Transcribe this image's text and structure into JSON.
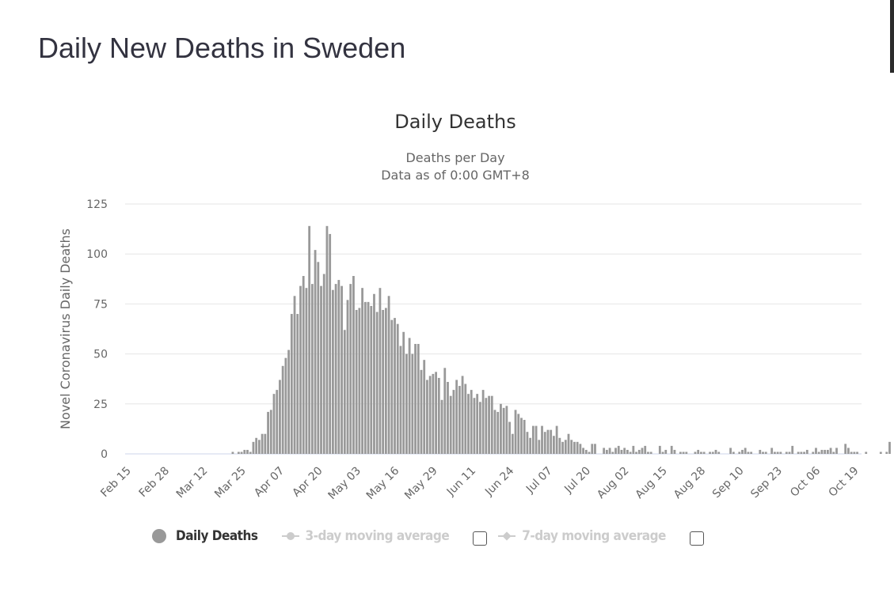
{
  "page": {
    "title": "Daily New Deaths in Sweden"
  },
  "chart_data": {
    "type": "bar",
    "title": "Daily Deaths",
    "subtitle": [
      "Deaths per Day",
      "Data as of 0:00 GMT+8"
    ],
    "xlabel": "",
    "ylabel": "Novel Coronavirus Daily Deaths",
    "ylim": [
      0,
      125
    ],
    "yticks": [
      0,
      25,
      50,
      75,
      100,
      125
    ],
    "grid": true,
    "start_date": "Feb 15",
    "x_tick_labels": [
      "Feb 15",
      "Feb 28",
      "Mar 12",
      "Mar 25",
      "Apr 07",
      "Apr 20",
      "May 03",
      "May 16",
      "May 29",
      "Jun 11",
      "Jun 24",
      "Jul 07",
      "Jul 20",
      "Aug 02",
      "Aug 15",
      "Aug 28",
      "Sep 10",
      "Sep 23",
      "Oct 06",
      "Oct 19"
    ],
    "x_tick_interval_days": 13,
    "bar_color": "#999999",
    "series": [
      {
        "name": "Daily Deaths",
        "values": [
          0,
          0,
          0,
          0,
          0,
          0,
          0,
          0,
          0,
          0,
          0,
          0,
          0,
          0,
          0,
          0,
          0,
          0,
          0,
          0,
          0,
          0,
          0,
          0,
          0,
          0,
          0,
          0,
          0,
          0,
          0,
          0,
          0,
          0,
          0,
          0,
          1,
          0,
          1,
          1,
          2,
          2,
          1,
          6,
          8,
          7,
          10,
          10,
          21,
          22,
          30,
          32,
          37,
          44,
          48,
          52,
          70,
          79,
          70,
          84,
          89,
          83,
          114,
          85,
          102,
          96,
          84,
          90,
          114,
          110,
          82,
          85,
          87,
          84,
          62,
          77,
          85,
          89,
          72,
          73,
          83,
          76,
          76,
          74,
          80,
          71,
          83,
          72,
          73,
          79,
          67,
          68,
          65,
          54,
          61,
          50,
          58,
          50,
          55,
          55,
          42,
          47,
          37,
          39,
          40,
          41,
          38,
          27,
          43,
          36,
          29,
          32,
          37,
          34,
          39,
          35,
          30,
          32,
          28,
          30,
          26,
          32,
          28,
          29,
          29,
          22,
          21,
          25,
          23,
          24,
          16,
          10,
          22,
          20,
          18,
          17,
          11,
          8,
          14,
          14,
          7,
          14,
          11,
          12,
          12,
          9,
          14,
          8,
          6,
          7,
          10,
          7,
          6,
          6,
          5,
          3,
          2,
          1,
          5,
          5,
          0,
          0,
          3,
          2,
          3,
          1,
          3,
          4,
          2,
          3,
          2,
          1,
          4,
          1,
          2,
          3,
          4,
          1,
          1,
          0,
          0,
          4,
          1,
          2,
          0,
          4,
          2,
          0,
          1,
          1,
          1,
          0,
          0,
          1,
          2,
          1,
          1,
          0,
          1,
          1,
          2,
          1,
          0,
          0,
          0,
          3,
          1,
          0,
          1,
          2,
          3,
          1,
          1,
          0,
          0,
          2,
          1,
          1,
          0,
          3,
          1,
          1,
          1,
          0,
          1,
          1,
          4,
          0,
          1,
          1,
          1,
          2,
          0,
          1,
          3,
          1,
          2,
          2,
          2,
          3,
          1,
          3,
          0,
          0,
          5,
          3,
          1,
          1,
          1,
          0,
          0,
          1,
          0,
          0,
          0,
          0,
          1,
          0,
          1,
          6
        ]
      }
    ]
  },
  "legend": {
    "items": [
      {
        "label": "Daily Deaths",
        "active": true
      },
      {
        "label": "3-day moving average",
        "active": false,
        "checked": false
      },
      {
        "label": "7-day moving average",
        "active": false,
        "checked": false
      }
    ]
  }
}
